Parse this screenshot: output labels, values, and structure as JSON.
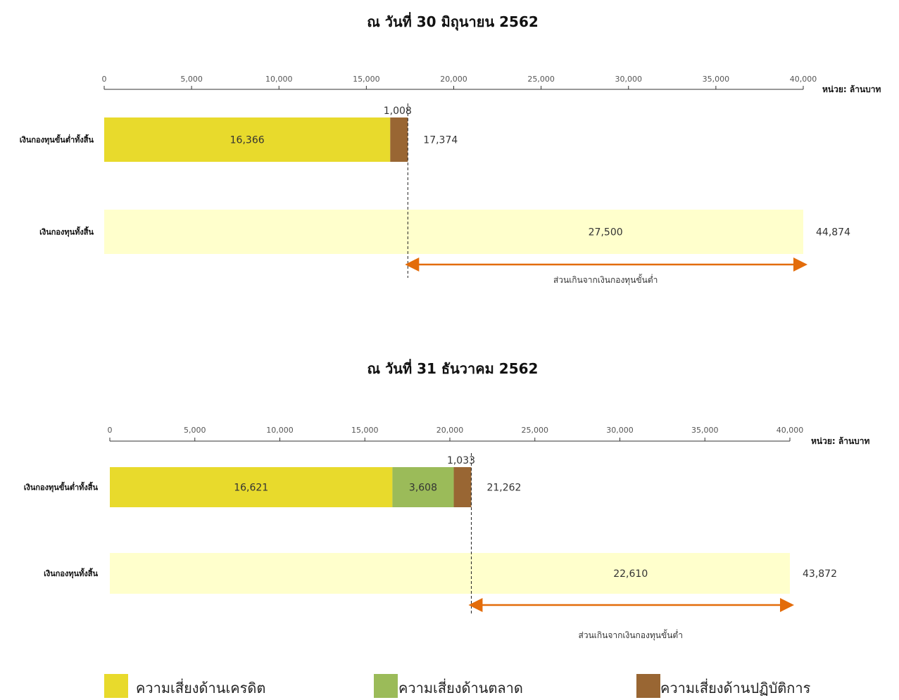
{
  "colors": {
    "credit": "#e8da2c",
    "market": "#9bbb59",
    "operational": "#996633",
    "total": "#ffffcc",
    "arrow": "#e36c0a"
  },
  "legend": {
    "credit": "ความเสี่ยงด้านเครดิต",
    "market": "ความเสี่ยงด้านตลาด",
    "operational": "ความเสี่ยงด้านปฏิบัติการ"
  },
  "chart_data": [
    {
      "type": "bar",
      "orientation": "horizontal",
      "stacked": true,
      "title": "ณ วันที่ 30 มิถุนายน 2562",
      "unit": "หน่วย: ล้านบาท",
      "xlim": [
        0,
        40000
      ],
      "ticks": [
        "0",
        "5,000",
        "10,000",
        "15,000",
        "20,000",
        "25,000",
        "30,000",
        "35,000",
        "40,000"
      ],
      "categories": [
        "เงินกองทุนขั้นต่ำทั้งสิ้น",
        "เงินกองทุนทั้งสิ้น"
      ],
      "requirement": {
        "credit": 16366,
        "market": 0,
        "operational": 1008,
        "labels": {
          "credit": "16,366",
          "operational": "1,008"
        },
        "total": 17374,
        "total_label": "17,374"
      },
      "capital": {
        "total": 44874,
        "total_label": "44,874",
        "excess": 27500,
        "excess_label": "27,500"
      },
      "excess_note": "ส่วนเกินจากเงินกองทุนขั้นต่ำ"
    },
    {
      "type": "bar",
      "orientation": "horizontal",
      "stacked": true,
      "title": "ณ วันที่ 31 ธันวาคม 2562",
      "unit": "หน่วย: ล้านบาท",
      "xlim": [
        0,
        40000
      ],
      "ticks": [
        "0",
        "5,000",
        "10,000",
        "15,000",
        "20,000",
        "25,000",
        "30,000",
        "35,000",
        "40,000"
      ],
      "categories": [
        "เงินกองทุนขั้นต่ำทั้งสิ้น",
        "เงินกองทุนทั้งสิ้น"
      ],
      "requirement": {
        "credit": 16621,
        "market": 3608,
        "operational": 1033,
        "labels": {
          "credit": "16,621",
          "market": "3,608",
          "operational": "1,033"
        },
        "total": 21262,
        "total_label": "21,262"
      },
      "capital": {
        "total": 43872,
        "total_label": "43,872",
        "excess": 22610,
        "excess_label": "22,610"
      },
      "excess_note": "ส่วนเกินจากเงินกองทุนขั้นต่ำ"
    }
  ]
}
